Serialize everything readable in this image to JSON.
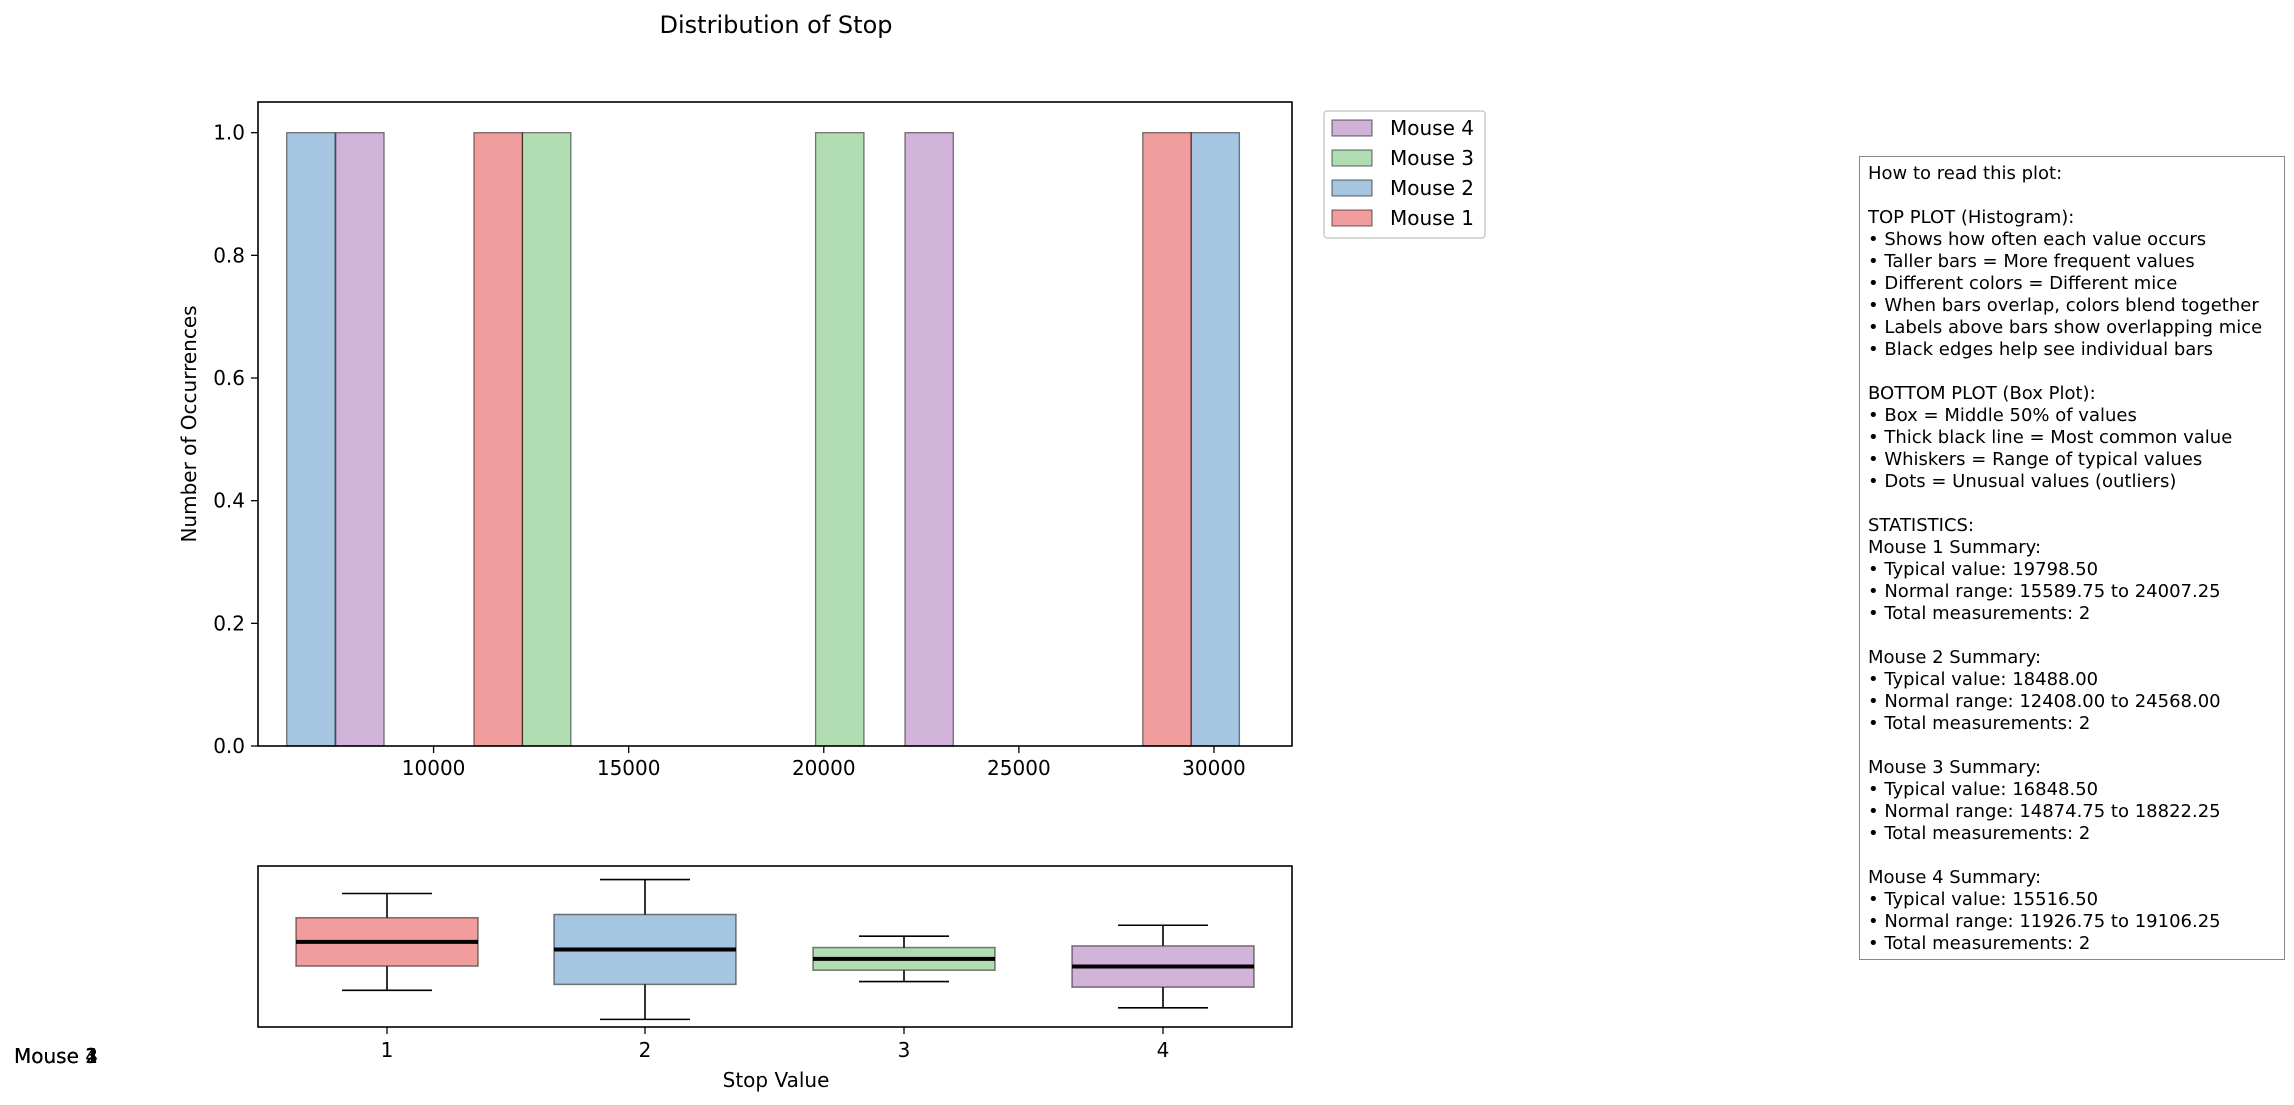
{
  "chart_data": [
    {
      "type": "bar",
      "title": "Distribution of Stop",
      "xlabel": "",
      "ylabel": "Number of Occurrences",
      "xlim": [
        5500,
        32000
      ],
      "ylim": [
        0,
        1.05
      ],
      "xticks": [
        10000,
        15000,
        20000,
        25000,
        30000
      ],
      "yticks": [
        0.0,
        0.2,
        0.4,
        0.6,
        0.8,
        1.0
      ],
      "bar_width": 1240,
      "grid": false,
      "legend_position": "outside-top-right",
      "series": [
        {
          "name": "Mouse 4",
          "color": "#b27fbf",
          "bins": [
            {
              "x": 8111,
              "count": 1
            },
            {
              "x": 22701,
              "count": 1
            }
          ]
        },
        {
          "name": "Mouse 3",
          "color": "#7fc77f",
          "bins": [
            {
              "x": 12898,
              "count": 1
            },
            {
              "x": 20410,
              "count": 1
            }
          ]
        },
        {
          "name": "Mouse 2",
          "color": "#6a9ecb",
          "bins": [
            {
              "x": 6855,
              "count": 1
            },
            {
              "x": 30032,
              "count": 1
            }
          ]
        },
        {
          "name": "Mouse 1",
          "color": "#ea5b5b",
          "bins": [
            {
              "x": 11655,
              "count": 1
            },
            {
              "x": 28795,
              "count": 1
            }
          ]
        }
      ]
    },
    {
      "type": "box",
      "xlabel": "Stop Value",
      "categories": [
        "1",
        "2",
        "3",
        "4"
      ],
      "yrange": [
        5000,
        33000
      ],
      "boxes": [
        {
          "name": "Mouse 1",
          "color": "#ea5b5b",
          "q1": 15589.75,
          "median": 19798.5,
          "q3": 24007.25,
          "whisker_low": 11380,
          "whisker_high": 28217
        },
        {
          "name": "Mouse 2",
          "color": "#6a9ecb",
          "q1": 12408.0,
          "median": 18488.0,
          "q3": 24568.0,
          "whisker_low": 6328,
          "whisker_high": 30648
        },
        {
          "name": "Mouse 3",
          "color": "#7fc77f",
          "q1": 14874.75,
          "median": 16848.5,
          "q3": 18822.25,
          "whisker_low": 12901,
          "whisker_high": 20796
        },
        {
          "name": "Mouse 4",
          "color": "#b27fbf",
          "q1": 11926.75,
          "median": 15516.5,
          "q3": 19106.25,
          "whisker_low": 8337,
          "whisker_high": 22696
        }
      ]
    }
  ],
  "stray_labels": [
    "Mouse 4",
    "Mouse 3",
    "Mouse 2",
    "Mouse 1"
  ],
  "info_box": {
    "lines": [
      "How to read this plot:",
      "",
      "TOP PLOT (Histogram):",
      "• Shows how often each value occurs",
      "• Taller bars = More frequent values",
      "• Different colors = Different mice",
      "• When bars overlap, colors blend together",
      "• Labels above bars show overlapping mice",
      "• Black edges help see individual bars",
      "",
      "BOTTOM PLOT (Box Plot):",
      "• Box = Middle 50% of values",
      "• Thick black line = Most common value",
      "• Whiskers = Range of typical values",
      "• Dots = Unusual values (outliers)",
      "",
      "STATISTICS:",
      "Mouse 1 Summary:",
      "• Typical value: 19798.50",
      "• Normal range: 15589.75 to 24007.25",
      "• Total measurements: 2",
      "",
      "Mouse 2 Summary:",
      "• Typical value: 18488.00",
      "• Normal range: 12408.00 to 24568.00",
      "• Total measurements: 2",
      "",
      "Mouse 3 Summary:",
      "• Typical value: 16848.50",
      "• Normal range: 14874.75 to 18822.25",
      "• Total measurements: 2",
      "",
      "Mouse 4 Summary:",
      "• Typical value: 15516.50",
      "• Normal range: 11926.75 to 19106.25",
      "• Total measurements: 2"
    ]
  }
}
